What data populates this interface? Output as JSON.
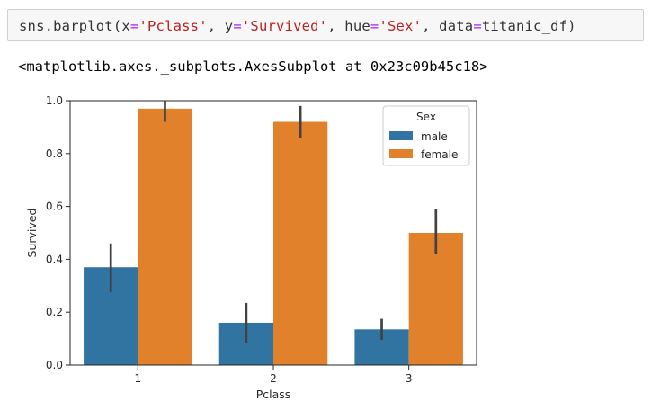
{
  "cell": {
    "code_tokens": {
      "t1": "sns.barplot(x",
      "t2": "=",
      "t3": "'Pclass'",
      "t4": ", y",
      "t5": "=",
      "t6": "'Survived'",
      "t7": ", hue",
      "t8": "=",
      "t9": "'Sex'",
      "t10": ", data",
      "t11": "=",
      "t12": "titanic_df)"
    },
    "output_text": "<matplotlib.axes._subplots.AxesSubplot at 0x23c09b45c18>"
  },
  "colors": {
    "male": "#3274a1",
    "female": "#e1812c",
    "errorbar": "#424242",
    "spine": "#262626"
  },
  "chart_data": {
    "type": "bar",
    "xlabel": "Pclass",
    "ylabel": "Survived",
    "categories": [
      "1",
      "2",
      "3"
    ],
    "ylim": [
      0,
      1.0
    ],
    "yticks": [
      0.0,
      0.2,
      0.4,
      0.6,
      0.8,
      1.0
    ],
    "ytick_labels": [
      "0.0",
      "0.2",
      "0.4",
      "0.6",
      "0.8",
      "1.0"
    ],
    "grid": false,
    "legend": {
      "title": "Sex",
      "placement": "top-right"
    },
    "series": [
      {
        "name": "male",
        "values": [
          0.37,
          0.16,
          0.135
        ],
        "ci_low": [
          0.275,
          0.085,
          0.095
        ],
        "ci_high": [
          0.46,
          0.235,
          0.175
        ]
      },
      {
        "name": "female",
        "values": [
          0.97,
          0.92,
          0.5
        ],
        "ci_low": [
          0.92,
          0.86,
          0.42
        ],
        "ci_high": [
          1.0,
          0.98,
          0.59
        ]
      }
    ]
  }
}
